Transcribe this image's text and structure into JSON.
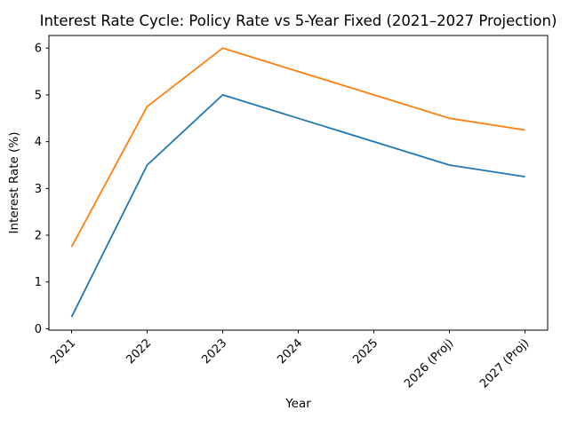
{
  "figure": {
    "background": "#ffffff"
  },
  "chart_data": {
    "type": "line",
    "title": "Interest Rate Cycle: Policy Rate vs 5-Year Fixed (2021–2027 Projection)",
    "xlabel": "Year",
    "ylabel": "Interest Rate (%)",
    "categories": [
      "2021",
      "2022",
      "2023",
      "2024",
      "2025",
      "2026 (Proj)",
      "2027 (Proj)"
    ],
    "series": [
      {
        "name": "Policy Rate",
        "color": "#1f77b4",
        "values": [
          0.25,
          3.5,
          5.0,
          4.5,
          4.0,
          3.5,
          3.25
        ]
      },
      {
        "name": "5-Year Fixed",
        "color": "#ff7f0e",
        "values": [
          1.75,
          4.75,
          6.0,
          5.5,
          5.0,
          4.5,
          4.25
        ]
      }
    ],
    "yticks": [
      0,
      1,
      2,
      3,
      4,
      5,
      6
    ],
    "ylim": [
      -0.03,
      6.27
    ],
    "x_tick_rotation_deg": 45,
    "grid": false,
    "legend_position": "none",
    "axis_color": "#000000",
    "text_color": "#000000"
  }
}
